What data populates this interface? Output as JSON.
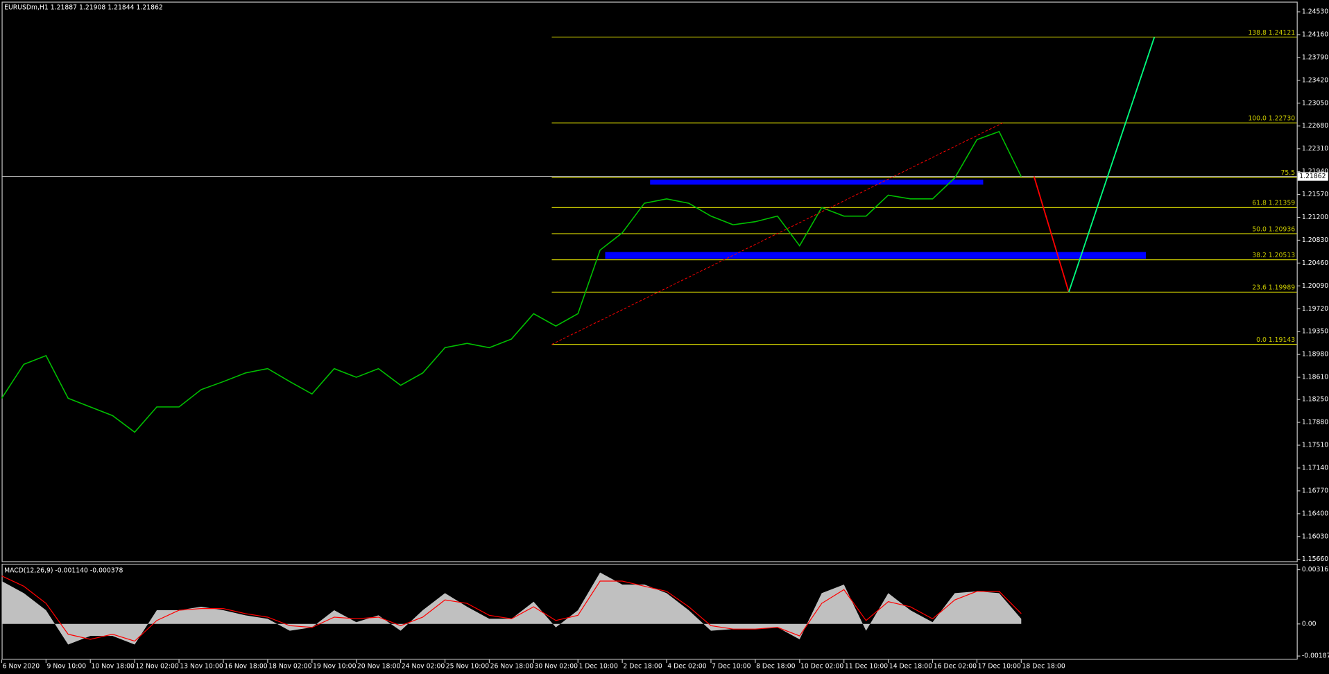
{
  "chart_data": [
    {
      "type": "line",
      "title": "EURUSDm,H1  1.21887 1.21908 1.21844 1.21862",
      "categories": [
        "6 Nov 2020",
        null,
        "9 Nov 10:00",
        null,
        "10 Nov 18:00",
        null,
        "12 Nov 02:00",
        null,
        "13 Nov 10:00",
        null,
        "16 Nov 18:00",
        null,
        "18 Nov 02:00",
        null,
        "19 Nov 10:00",
        null,
        "20 Nov 18:00",
        null,
        "24 Nov 02:00",
        null,
        "25 Nov 10:00",
        null,
        "26 Nov 18:00",
        null,
        "30 Nov 02:00",
        null,
        "1 Dec 10:00",
        null,
        "2 Dec 18:00",
        null,
        "4 Dec 02:00",
        null,
        "7 Dec 10:00",
        null,
        "8 Dec 18:00",
        null,
        "10 Dec 02:00",
        null,
        "11 Dec 10:00",
        null,
        "14 Dec 18:00",
        null,
        "16 Dec 02:00",
        null,
        "17 Dec 10:00",
        null,
        "18 Dec 18:00"
      ],
      "series": [
        {
          "color": "#00c000",
          "values": [
            1.1827,
            1.1882,
            1.1896,
            1.1827,
            1.1813,
            1.1799,
            1.1772,
            1.1813,
            1.1813,
            1.1841,
            1.1854,
            1.1868,
            1.1875,
            1.1854,
            1.1834,
            1.1875,
            1.1861,
            1.1875,
            1.1848,
            1.1868,
            1.1909,
            1.1916,
            1.1909,
            1.1923,
            1.1964,
            1.1944,
            1.1964,
            1.2067,
            1.2095,
            1.2143,
            1.215,
            1.2143,
            1.2122,
            1.2108,
            1.2113,
            1.2122,
            1.2074,
            1.2136,
            1.2122,
            1.2122,
            1.2156,
            1.215,
            1.215,
            1.2184,
            1.2246,
            1.2259,
            1.2186
          ]
        }
      ],
      "ylim": [
        1.1563,
        1.2468
      ],
      "yticks": [
        {
          "value": 1.2453,
          "label": "1.24530"
        },
        {
          "value": 1.2416,
          "label": "1.24160"
        },
        {
          "value": 1.2379,
          "label": "1.23790"
        },
        {
          "value": 1.2342,
          "label": "1.23420"
        },
        {
          "value": 1.2305,
          "label": "1.23050"
        },
        {
          "value": 1.2268,
          "label": "1.22680"
        },
        {
          "value": 1.2231,
          "label": "1.22310"
        },
        {
          "value": 1.2194,
          "label": "1.21940"
        },
        {
          "value": 1.2157,
          "label": "1.21570"
        },
        {
          "value": 1.212,
          "label": "1.21200"
        },
        {
          "value": 1.2083,
          "label": "1.20830"
        },
        {
          "value": 1.2046,
          "label": "1.20460"
        },
        {
          "value": 1.2009,
          "label": "1.20090"
        },
        {
          "value": 1.1972,
          "label": "1.19720"
        },
        {
          "value": 1.1935,
          "label": "1.19350"
        },
        {
          "value": 1.1898,
          "label": "1.18980"
        },
        {
          "value": 1.1861,
          "label": "1.18610"
        },
        {
          "value": 1.1825,
          "label": "1.18250"
        },
        {
          "value": 1.1788,
          "label": "1.17880"
        },
        {
          "value": 1.1751,
          "label": "1.17510"
        },
        {
          "value": 1.1714,
          "label": "1.17140"
        },
        {
          "value": 1.1677,
          "label": "1.16770"
        },
        {
          "value": 1.164,
          "label": "1.16400"
        },
        {
          "value": 1.1603,
          "label": "1.16030"
        },
        {
          "value": 1.1566,
          "label": "1.15660"
        }
      ],
      "current_price": 1.21862,
      "fib_color": "#c8c800",
      "fib_levels": [
        {
          "value": 1.24121,
          "label": "138.8 1.24121"
        },
        {
          "value": 1.2273,
          "label": "100.0 1.22730"
        },
        {
          "value": 1.2185,
          "label": "75.5"
        },
        {
          "value": 1.21359,
          "label": "61.8 1.21359"
        },
        {
          "value": 1.20936,
          "label": "50.0 1.20936"
        },
        {
          "value": 1.20513,
          "label": "38.2 1.20513"
        },
        {
          "value": 1.19989,
          "label": "23.6 1.19989"
        },
        {
          "value": 1.19143,
          "label": "0.0 1.19143"
        }
      ],
      "zones": [
        {
          "top": 1.2181,
          "bottom": 1.2173,
          "color": "#0000ff"
        },
        {
          "top": 1.2064,
          "bottom": 1.2053,
          "color": "#0000ff"
        }
      ],
      "drawings": [
        {
          "from": 1.19143,
          "to": 1.2273,
          "color": "#ff0000",
          "dashed": true
        },
        {
          "from": 1.21862,
          "to": 1.19989,
          "color": "#ff0000",
          "dashed": false
        },
        {
          "from": 1.19989,
          "to": 1.24121,
          "color": "#00ff7f",
          "dashed": false
        }
      ]
    },
    {
      "type": "macd",
      "title": "MACD(12,26,9) -0.001140 -0.000378",
      "series": [
        {
          "color": "#c0c0c0",
          "values": [
            0.0025,
            0.0018,
            0.0008,
            -0.0012,
            -0.0007,
            -0.0007,
            -0.0012,
            0.0008,
            0.0008,
            0.001,
            0.0008,
            0.0005,
            0.0003,
            -0.0004,
            -0.0002,
            0.0008,
            0.0001,
            0.0005,
            -0.0004,
            0.0008,
            0.0018,
            0.001,
            0.0003,
            0.0003,
            0.0013,
            -0.0002,
            0.0008,
            0.003,
            0.0023,
            0.0023,
            0.0018,
            0.0008,
            -0.0004,
            -0.0003,
            -0.0003,
            -0.0002,
            -0.0009,
            0.0018,
            0.0023,
            -0.0004,
            0.0018,
            0.0008,
            0.0001,
            0.0018,
            0.0019,
            0.0018,
            0.0003
          ]
        },
        {
          "color": "#ff0000",
          "values": [
            0.0028,
            0.0022,
            0.0012,
            -0.0006,
            -0.0009,
            -0.0006,
            -0.001,
            0.0002,
            0.0008,
            0.0009,
            0.0009,
            0.0006,
            0.0004,
            -0.0001,
            -0.0002,
            0.0004,
            0.0003,
            0.0004,
            -0.0001,
            0.0004,
            0.0014,
            0.0012,
            0.0005,
            0.0003,
            0.001,
            0.0002,
            0.0005,
            0.0025,
            0.0025,
            0.0022,
            0.0019,
            0.001,
            -0.0001,
            -0.0003,
            -0.0003,
            -0.0002,
            -0.0007,
            0.0012,
            0.002,
            0.0002,
            0.0013,
            0.001,
            0.0003,
            0.0014,
            0.0019,
            0.0019,
            0.0006
          ]
        }
      ],
      "ylim": [
        -0.00208,
        0.00346
      ],
      "yticks": [
        0.003165,
        {
          "value": 0,
          "label": "0.00"
        },
        -0.001874
      ]
    }
  ]
}
